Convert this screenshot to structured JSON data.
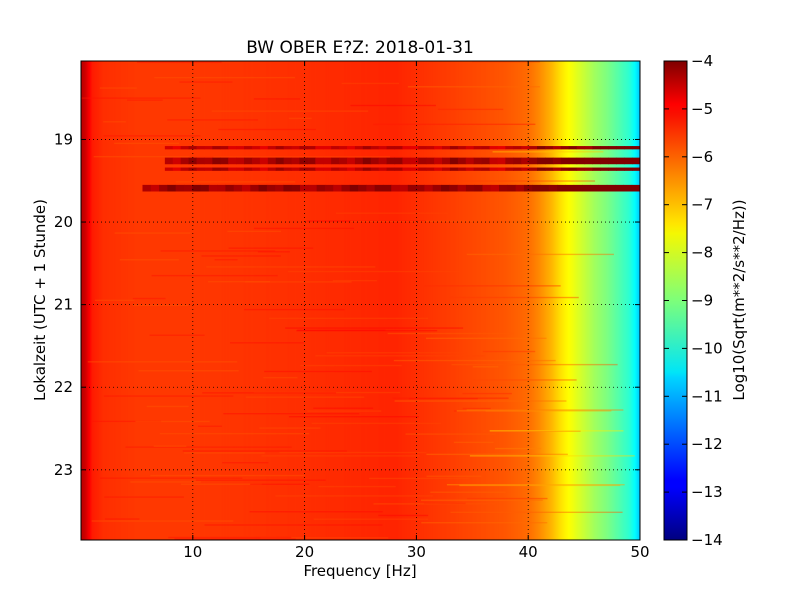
{
  "chart_data": {
    "type": "heatmap",
    "title": "BW OBER E?Z: 2018-01-31",
    "xlabel": "Frequency [Hz]",
    "ylabel": "Lokalzeit (UTC + 1 Stunde)",
    "colorbar_label": "Log10(Sqrt(m**2/s**2/Hz))",
    "colormap": "jet",
    "xlim": [
      0,
      50
    ],
    "ylim": [
      23.85,
      18.05
    ],
    "x_ticks": [
      10,
      20,
      30,
      40,
      50
    ],
    "y_ticks": [
      19,
      20,
      21,
      22,
      23
    ],
    "color_ticks": [
      -4,
      -5,
      -6,
      -7,
      -8,
      -9,
      -10,
      -11,
      -12,
      -13,
      -14
    ],
    "color_range": [
      -14,
      -4
    ],
    "grid": true,
    "frequency_profile": {
      "x": [
        0,
        0.3,
        1,
        2,
        5,
        10,
        20,
        28,
        32,
        36,
        38,
        40,
        41,
        42,
        43,
        44,
        45,
        46,
        47,
        48,
        49,
        49.5,
        50
      ],
      "values": [
        -4.6,
        -4.7,
        -5.5,
        -5.7,
        -5.8,
        -5.8,
        -5.7,
        -5.6,
        -5.8,
        -6.0,
        -6.1,
        -6.3,
        -6.6,
        -7.0,
        -7.5,
        -7.9,
        -8.3,
        -8.7,
        -9.0,
        -9.4,
        -9.8,
        -10.2,
        -10.8
      ]
    },
    "high_energy_bands": [
      {
        "time_start": 19.08,
        "time_end": 19.12,
        "freq_start": 7.5,
        "freq_end": 50,
        "value": -4.7
      },
      {
        "time_start": 19.22,
        "time_end": 19.3,
        "freq_start": 7.5,
        "freq_end": 50,
        "value": -4.4
      },
      {
        "time_start": 19.34,
        "time_end": 19.38,
        "freq_start": 7.5,
        "freq_end": 50,
        "value": -4.6
      },
      {
        "time_start": 19.55,
        "time_end": 19.63,
        "freq_start": 5.5,
        "freq_end": 50,
        "value": -4.3
      }
    ]
  }
}
